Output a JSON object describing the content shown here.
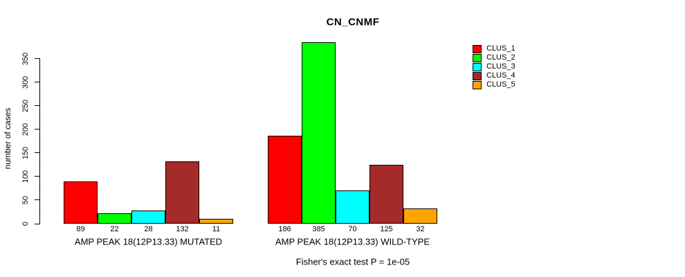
{
  "chart_data": {
    "type": "bar",
    "title": "CN_CNMF",
    "xlabel": "",
    "ylabel": "number of cases",
    "ylim": [
      0,
      390
    ],
    "yticks": [
      0,
      50,
      100,
      150,
      200,
      250,
      300,
      350
    ],
    "grid": false,
    "legend_position": "right",
    "show_bar_values": true,
    "categories": [
      "AMP PEAK 18(12P13.33) MUTATED",
      "AMP PEAK 18(12P13.33) WILD-TYPE"
    ],
    "series": [
      {
        "name": "CLUS_1",
        "color": "#FF0000",
        "values": [
          89,
          186
        ]
      },
      {
        "name": "CLUS_2",
        "color": "#00FF00",
        "values": [
          22,
          385
        ]
      },
      {
        "name": "CLUS_3",
        "color": "#00FFFF",
        "values": [
          28,
          70
        ]
      },
      {
        "name": "CLUS_4",
        "color": "#A52A2A",
        "values": [
          132,
          125
        ]
      },
      {
        "name": "CLUS_5",
        "color": "#FFA500",
        "values": [
          11,
          32
        ]
      }
    ],
    "annotation": "Fisher's exact test P = 1e-05"
  }
}
